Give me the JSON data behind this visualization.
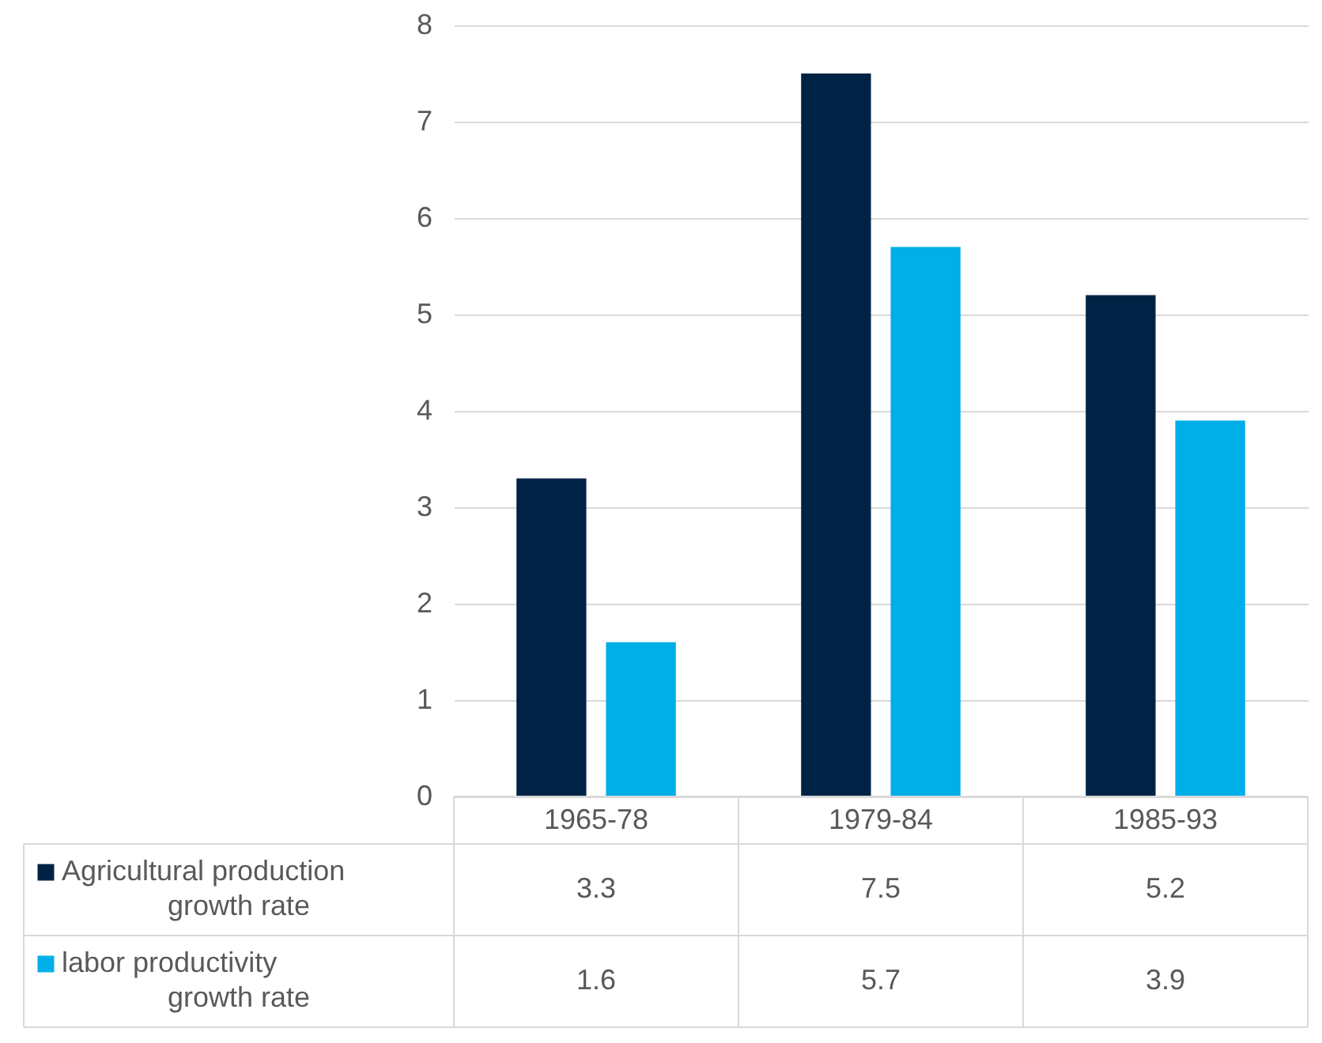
{
  "chart_data": {
    "type": "bar",
    "categories": [
      "1965-78",
      "1979-84",
      "1985-93"
    ],
    "series": [
      {
        "name": "Agricultural production growth rate",
        "color": "#002345",
        "values": [
          3.3,
          7.5,
          5.2
        ]
      },
      {
        "name": "labor productivity growth rate",
        "color": "#00aee8",
        "values": [
          1.6,
          5.7,
          3.9
        ]
      }
    ],
    "ylim": [
      0,
      8
    ],
    "yticks": [
      0,
      1,
      2,
      3,
      4,
      5,
      6,
      7,
      8
    ],
    "grid": "y",
    "legend": "bottom",
    "data_labels": true
  }
}
